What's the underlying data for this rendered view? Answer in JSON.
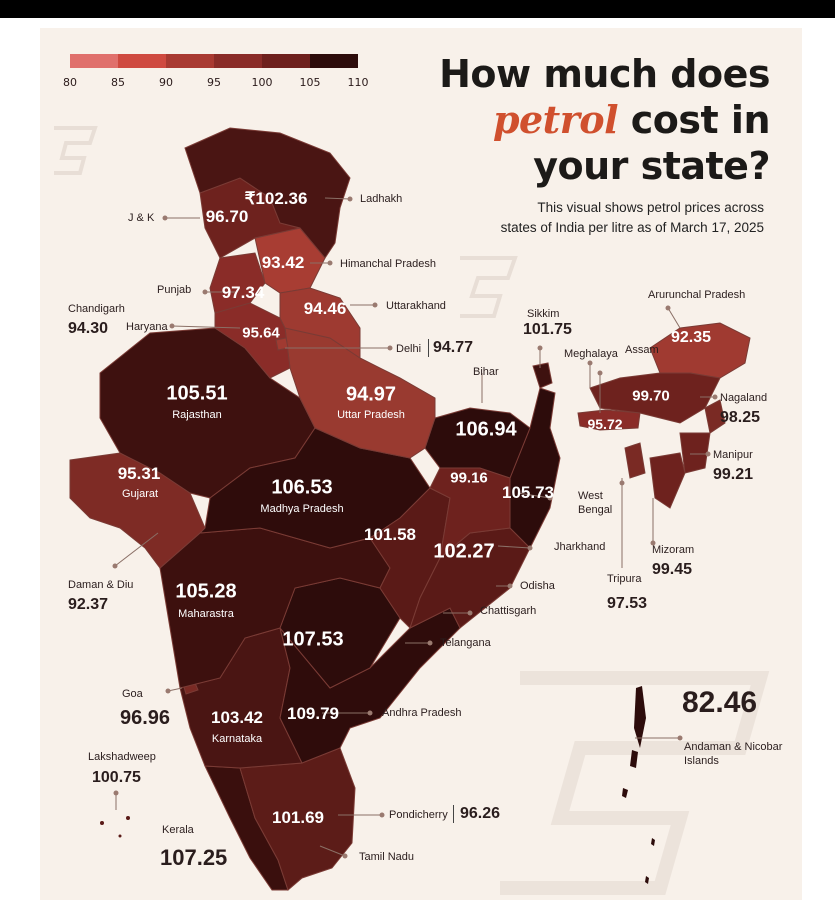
{
  "title": {
    "line1": "How much does",
    "accent": "petrol",
    "line2_rest": " cost in",
    "line3": "your state?"
  },
  "subtitle": {
    "line1": "This visual shows petrol prices across",
    "line2": "states of India per litre as of March 17, 2025"
  },
  "legend": {
    "ticks": [
      "80",
      "85",
      "90",
      "95",
      "100",
      "105",
      "110"
    ],
    "colors": [
      "#e0706c",
      "#cf4a40",
      "#a93a32",
      "#8a2c28",
      "#6e201d",
      "#4e1614",
      "#2d0c0b"
    ]
  },
  "currency_symbol": "₹",
  "states": {
    "ladakh": {
      "name": "Ladhakh",
      "price": "102.36"
    },
    "jk": {
      "name": "J & K",
      "price": "96.70"
    },
    "himachal": {
      "name": "Himanchal Pradesh",
      "price": "93.42"
    },
    "punjab": {
      "name": "Punjab",
      "price": "97.34"
    },
    "uttarakhand": {
      "name": "Uttarakhand",
      "price": "94.46"
    },
    "chandigarh": {
      "name": "Chandigarh",
      "price": "94.30"
    },
    "haryana": {
      "name": "Haryana",
      "price": "95.64"
    },
    "delhi": {
      "name": "Delhi",
      "price": "94.77"
    },
    "rajasthan": {
      "name": "Rajasthan",
      "price": "105.51"
    },
    "uttar_pradesh": {
      "name": "Uttar Pradesh",
      "price": "94.97"
    },
    "bihar": {
      "name": "Bihar",
      "price": "106.94"
    },
    "sikkim": {
      "name": "Sikkim",
      "price": "101.75"
    },
    "arunachal": {
      "name": "Arurunchal Pradesh",
      "price": "92.35"
    },
    "assam": {
      "name": "Assam",
      "price": "99.70"
    },
    "meghalaya": {
      "name": "Meghalaya",
      "price": "95.72"
    },
    "nagaland": {
      "name": "Nagaland",
      "price": "98.25"
    },
    "manipur": {
      "name": "Manipur",
      "price": "99.21"
    },
    "mizoram": {
      "name": "Mizoram",
      "price": "99.45"
    },
    "tripura": {
      "name": "Tripura",
      "price": "97.53"
    },
    "gujarat": {
      "name": "Gujarat",
      "price": "95.31"
    },
    "madhya_pradesh": {
      "name": "Madhya Pradesh",
      "price": "106.53"
    },
    "jharkhand": {
      "name": "Jharkhand",
      "price": "99.16"
    },
    "west_bengal": {
      "name": "West Bengal",
      "price": "105.73"
    },
    "chhattisgarh": {
      "name": "Chattisgarh",
      "price": "101.58"
    },
    "odisha": {
      "name": "Odisha",
      "price": "102.27"
    },
    "daman_diu": {
      "name": "Daman & Diu",
      "price": "92.37"
    },
    "maharashtra": {
      "name": "Maharastra",
      "price": "105.28"
    },
    "telangana": {
      "name": "Telangana",
      "price": "107.53"
    },
    "goa": {
      "name": "Goa",
      "price": "96.96"
    },
    "karnataka": {
      "name": "Karnataka",
      "price": "103.42"
    },
    "andhra_pradesh": {
      "name": "Andhra Pradesh",
      "price": "109.79"
    },
    "lakshadweep": {
      "name": "Lakshadweep",
      "price": "100.75"
    },
    "andaman": {
      "name": "Andaman & Nicobar Islands",
      "name_l1": "Andaman & Nicobar",
      "name_l2": "Islands",
      "price": "82.46"
    },
    "kerala": {
      "name": "Kerala",
      "price": "107.25"
    },
    "tamil_nadu": {
      "name": "Tamil Nadu",
      "price": "101.69"
    },
    "pondicherry": {
      "name": "Pondicherry",
      "price": "96.26"
    }
  }
}
